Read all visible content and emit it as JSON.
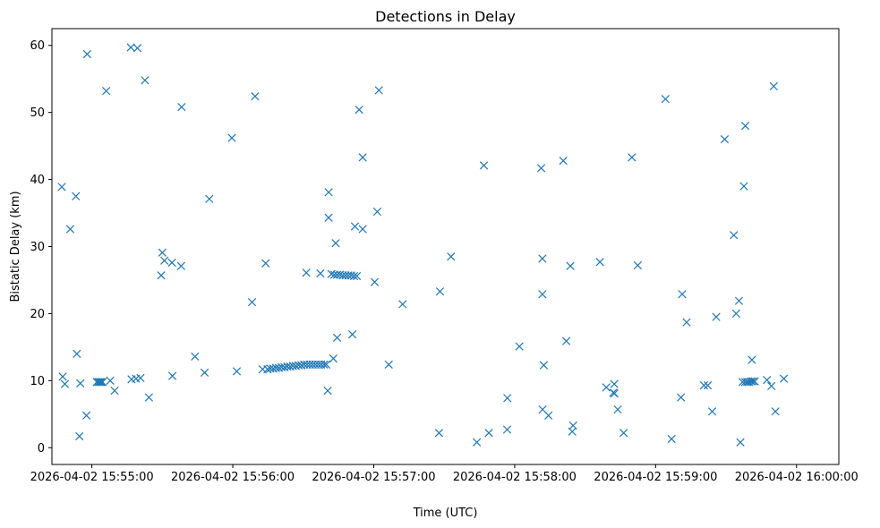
{
  "chart_data": {
    "type": "scatter",
    "title": "Detections in Delay",
    "xlabel": "Time (UTC)",
    "ylabel": "Bistatic Delay (km)",
    "marker": "x",
    "color": "#1f77b4",
    "grid": false,
    "xlim_seconds": [
      -17,
      318
    ],
    "ylim": [
      -2.5,
      62.5
    ],
    "x_ticks": [
      {
        "t": 0,
        "label": "2026-04-02 15:55:00"
      },
      {
        "t": 60,
        "label": "2026-04-02 15:56:00"
      },
      {
        "t": 120,
        "label": "2026-04-02 15:57:00"
      },
      {
        "t": 180,
        "label": "2026-04-02 15:58:00"
      },
      {
        "t": 240,
        "label": "2026-04-02 15:59:00"
      },
      {
        "t": 300,
        "label": "2026-04-02 16:00:00"
      }
    ],
    "y_ticks": [
      0,
      10,
      20,
      30,
      40,
      50,
      60
    ],
    "x_reference": "2026-04-02 15:55:00 UTC",
    "x_unit": "seconds after reference",
    "points": [
      [
        -12.8,
        38.9
      ],
      [
        -12.4,
        10.6
      ],
      [
        -11.5,
        9.5
      ],
      [
        -9.2,
        32.6
      ],
      [
        -6.8,
        37.5
      ],
      [
        -6.4,
        14.0
      ],
      [
        -5.3,
        1.7
      ],
      [
        -4.9,
        9.6
      ],
      [
        -2.3,
        4.8
      ],
      [
        -2.0,
        58.7
      ],
      [
        2.1,
        9.8
      ],
      [
        2.8,
        9.8
      ],
      [
        3.4,
        9.8
      ],
      [
        4.0,
        9.8
      ],
      [
        4.6,
        9.8
      ],
      [
        6.1,
        53.2
      ],
      [
        7.8,
        10.0
      ],
      [
        9.7,
        8.5
      ],
      [
        16.6,
        59.7
      ],
      [
        16.9,
        10.2
      ],
      [
        18.8,
        10.3
      ],
      [
        19.4,
        59.6
      ],
      [
        20.7,
        10.4
      ],
      [
        22.6,
        54.8
      ],
      [
        24.3,
        7.5
      ],
      [
        29.5,
        25.7
      ],
      [
        30.0,
        29.1
      ],
      [
        30.9,
        27.9
      ],
      [
        34.1,
        27.6
      ],
      [
        34.3,
        10.7
      ],
      [
        38.0,
        27.1
      ],
      [
        38.2,
        50.8
      ],
      [
        43.9,
        13.6
      ],
      [
        48.0,
        11.2
      ],
      [
        50.0,
        37.1
      ],
      [
        59.6,
        46.2
      ],
      [
        61.7,
        11.4
      ],
      [
        68.2,
        21.7
      ],
      [
        69.5,
        52.4
      ],
      [
        72.7,
        11.7
      ],
      [
        74.0,
        27.5
      ],
      [
        74.8,
        11.7
      ],
      [
        76.0,
        11.8
      ],
      [
        77.2,
        11.8
      ],
      [
        78.4,
        11.9
      ],
      [
        79.6,
        11.9
      ],
      [
        80.8,
        12.0
      ],
      [
        82.0,
        12.0
      ],
      [
        83.2,
        12.1
      ],
      [
        84.4,
        12.1
      ],
      [
        85.6,
        12.2
      ],
      [
        86.8,
        12.2
      ],
      [
        88.0,
        12.3
      ],
      [
        89.2,
        12.3
      ],
      [
        90.4,
        12.4
      ],
      [
        91.6,
        12.4
      ],
      [
        92.8,
        12.4
      ],
      [
        94.0,
        12.4
      ],
      [
        95.2,
        12.4
      ],
      [
        96.4,
        12.4
      ],
      [
        97.6,
        12.4
      ],
      [
        98.8,
        12.4
      ],
      [
        99.8,
        12.4
      ],
      [
        91.3,
        26.1
      ],
      [
        97.3,
        26.0
      ],
      [
        100.4,
        8.5
      ],
      [
        100.8,
        38.1
      ],
      [
        100.8,
        34.3
      ],
      [
        102.0,
        25.9
      ],
      [
        102.8,
        13.3
      ],
      [
        103.2,
        25.8
      ],
      [
        103.8,
        30.5
      ],
      [
        104.4,
        16.4
      ],
      [
        104.4,
        25.8
      ],
      [
        105.6,
        25.8
      ],
      [
        106.8,
        25.7
      ],
      [
        108.0,
        25.7
      ],
      [
        109.2,
        25.7
      ],
      [
        110.4,
        25.7
      ],
      [
        111.6,
        25.6
      ],
      [
        112.8,
        25.6
      ],
      [
        110.9,
        16.9
      ],
      [
        112.0,
        33.0
      ],
      [
        113.8,
        50.4
      ],
      [
        115.3,
        43.3
      ],
      [
        115.3,
        32.6
      ],
      [
        120.4,
        24.7
      ],
      [
        121.5,
        35.2
      ],
      [
        122.2,
        53.3
      ],
      [
        126.4,
        12.4
      ],
      [
        132.3,
        21.4
      ],
      [
        147.8,
        2.2
      ],
      [
        148.2,
        23.3
      ],
      [
        152.9,
        28.5
      ],
      [
        163.9,
        0.8
      ],
      [
        166.9,
        42.1
      ],
      [
        169.0,
        2.2
      ],
      [
        176.8,
        2.7
      ],
      [
        176.9,
        7.4
      ],
      [
        182.0,
        15.1
      ],
      [
        191.3,
        41.7
      ],
      [
        191.8,
        28.2
      ],
      [
        191.8,
        22.9
      ],
      [
        191.9,
        5.7
      ],
      [
        192.4,
        12.3
      ],
      [
        194.4,
        4.8
      ],
      [
        200.7,
        42.8
      ],
      [
        202.0,
        15.9
      ],
      [
        203.7,
        27.1
      ],
      [
        204.5,
        2.4
      ],
      [
        204.9,
        3.3
      ],
      [
        216.3,
        27.7
      ],
      [
        219.0,
        9.0
      ],
      [
        222.0,
        8.2
      ],
      [
        222.4,
        9.5
      ],
      [
        222.5,
        8.1
      ],
      [
        223.9,
        5.7
      ],
      [
        226.4,
        2.2
      ],
      [
        229.9,
        43.3
      ],
      [
        232.4,
        27.2
      ],
      [
        244.2,
        52.0
      ],
      [
        246.8,
        1.3
      ],
      [
        250.8,
        7.5
      ],
      [
        251.3,
        22.9
      ],
      [
        253.2,
        18.7
      ],
      [
        260.6,
        9.3
      ],
      [
        262.2,
        9.3
      ],
      [
        264.1,
        5.4
      ],
      [
        265.8,
        19.5
      ],
      [
        269.4,
        46.0
      ],
      [
        273.3,
        31.7
      ],
      [
        274.3,
        20.0
      ],
      [
        275.5,
        21.9
      ],
      [
        276.1,
        0.8
      ],
      [
        277.0,
        9.8
      ],
      [
        277.6,
        39.0
      ],
      [
        278.1,
        9.8
      ],
      [
        278.2,
        48.0
      ],
      [
        279.0,
        9.8
      ],
      [
        279.8,
        9.8
      ],
      [
        280.6,
        9.9
      ],
      [
        281.0,
        13.1
      ],
      [
        281.4,
        9.9
      ],
      [
        282.2,
        9.9
      ],
      [
        287.4,
        10.1
      ],
      [
        289.3,
        9.2
      ],
      [
        290.3,
        53.9
      ],
      [
        291.0,
        5.4
      ],
      [
        294.6,
        10.3
      ]
    ]
  }
}
